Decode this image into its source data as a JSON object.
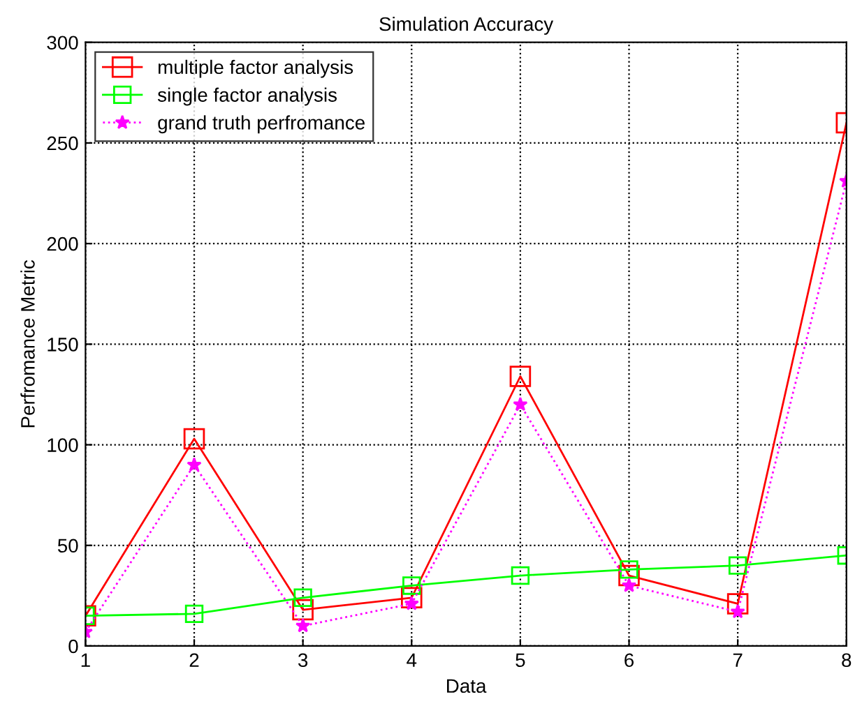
{
  "chart_data": {
    "type": "line",
    "title": "Simulation Accuracy",
    "xlabel": "Data",
    "ylabel": "Perfromance Metric",
    "x": [
      1,
      2,
      3,
      4,
      5,
      6,
      7,
      8
    ],
    "series": [
      {
        "name": "multiple factor analysis",
        "color": "#ff0000",
        "marker": "square",
        "line_style": "solid",
        "values": [
          15,
          103,
          18,
          24,
          134,
          35,
          21,
          260
        ]
      },
      {
        "name": "single factor analysis",
        "color": "#00ff00",
        "marker": "square",
        "line_style": "solid",
        "values": [
          15,
          16,
          24,
          30,
          35,
          38,
          40,
          45
        ]
      },
      {
        "name": "grand truth perfromance",
        "color": "#ff00ff",
        "marker": "star",
        "line_style": "dotted",
        "values": [
          7,
          90,
          10,
          21,
          120,
          30,
          17,
          231
        ]
      }
    ],
    "xlim": [
      1,
      8
    ],
    "ylim": [
      0,
      300
    ],
    "xticks": [
      1,
      2,
      3,
      4,
      5,
      6,
      7,
      8
    ],
    "yticks": [
      0,
      50,
      100,
      150,
      200,
      250,
      300
    ],
    "grid": true,
    "legend": "top left"
  }
}
